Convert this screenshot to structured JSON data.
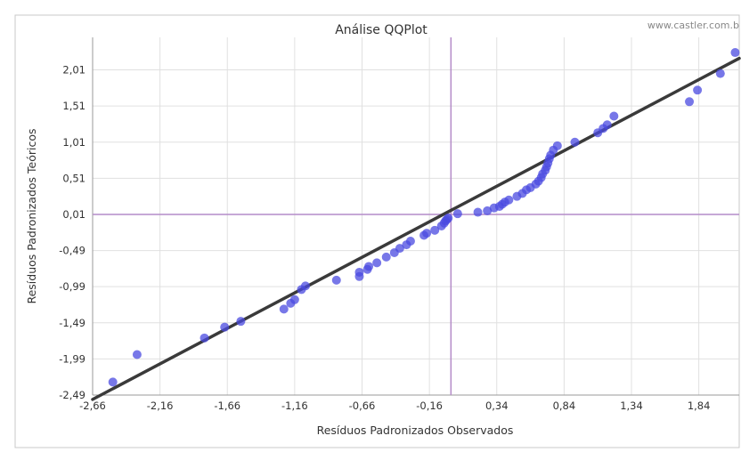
{
  "chart_data": {
    "type": "scatter",
    "title": "Análise QQPlot",
    "watermark": "www.castler.com.b",
    "xlabel": "Resíduos Padronizados Observados",
    "ylabel": "Resíduos Padronizados Teóricos",
    "xlim": [
      -2.66,
      2.14
    ],
    "ylim": [
      -2.49,
      2.46
    ],
    "x_ticks": [
      "-2,66",
      "-2,16",
      "-1,66",
      "-1,16",
      "-0,66",
      "-0,16",
      "0,34",
      "0,84",
      "1,34",
      "1,84"
    ],
    "y_ticks": [
      "-2,49",
      "-1,99",
      "-1,49",
      "-0,99",
      "-0,49",
      "0,01",
      "0,51",
      "1,01",
      "1,51",
      "2,01"
    ],
    "x_tick_values": [
      -2.66,
      -2.16,
      -1.66,
      -1.16,
      -0.66,
      -0.16,
      0.34,
      0.84,
      1.34,
      1.84
    ],
    "y_tick_values": [
      -2.49,
      -1.99,
      -1.49,
      -0.99,
      -0.49,
      0.01,
      0.51,
      1.01,
      1.51,
      2.01
    ],
    "grid": true,
    "reference_lines": {
      "x": 0.0,
      "y": 0.01
    },
    "fit_line": {
      "from": [
        -2.66,
        -2.55
      ],
      "to": [
        2.14,
        2.17
      ]
    },
    "colors": {
      "points": "#4a4ae0",
      "fit_line": "#3a3a3a",
      "reference": "#b48cc8",
      "grid": "#e0e0e0"
    },
    "points": [
      [
        -2.51,
        -2.31
      ],
      [
        -2.33,
        -1.93
      ],
      [
        -1.83,
        -1.7
      ],
      [
        -1.68,
        -1.55
      ],
      [
        -1.56,
        -1.47
      ],
      [
        -1.24,
        -1.3
      ],
      [
        -1.19,
        -1.22
      ],
      [
        -1.16,
        -1.17
      ],
      [
        -1.11,
        -1.03
      ],
      [
        -1.08,
        -0.98
      ],
      [
        -0.85,
        -0.9
      ],
      [
        -0.68,
        -0.85
      ],
      [
        -0.68,
        -0.79
      ],
      [
        -0.62,
        -0.75
      ],
      [
        -0.61,
        -0.71
      ],
      [
        -0.55,
        -0.66
      ],
      [
        -0.48,
        -0.58
      ],
      [
        -0.42,
        -0.52
      ],
      [
        -0.38,
        -0.46
      ],
      [
        -0.33,
        -0.41
      ],
      [
        -0.3,
        -0.36
      ],
      [
        -0.2,
        -0.28
      ],
      [
        -0.18,
        -0.25
      ],
      [
        -0.12,
        -0.21
      ],
      [
        -0.07,
        -0.15
      ],
      [
        -0.05,
        -0.11
      ],
      [
        -0.04,
        -0.08
      ],
      [
        -0.03,
        -0.06
      ],
      [
        -0.02,
        -0.04
      ],
      [
        0.05,
        0.02
      ],
      [
        0.2,
        0.04
      ],
      [
        0.27,
        0.06
      ],
      [
        0.32,
        0.1
      ],
      [
        0.36,
        0.12
      ],
      [
        0.38,
        0.15
      ],
      [
        0.4,
        0.18
      ],
      [
        0.43,
        0.21
      ],
      [
        0.49,
        0.26
      ],
      [
        0.53,
        0.3
      ],
      [
        0.56,
        0.35
      ],
      [
        0.59,
        0.38
      ],
      [
        0.63,
        0.43
      ],
      [
        0.65,
        0.47
      ],
      [
        0.67,
        0.52
      ],
      [
        0.68,
        0.57
      ],
      [
        0.7,
        0.62
      ],
      [
        0.71,
        0.67
      ],
      [
        0.72,
        0.72
      ],
      [
        0.73,
        0.78
      ],
      [
        0.74,
        0.83
      ],
      [
        0.76,
        0.9
      ],
      [
        0.79,
        0.96
      ],
      [
        0.92,
        1.01
      ],
      [
        1.09,
        1.14
      ],
      [
        1.13,
        1.2
      ],
      [
        1.16,
        1.25
      ],
      [
        1.21,
        1.37
      ],
      [
        1.77,
        1.57
      ],
      [
        1.83,
        1.73
      ],
      [
        2.0,
        1.96
      ],
      [
        2.11,
        2.25
      ]
    ]
  }
}
